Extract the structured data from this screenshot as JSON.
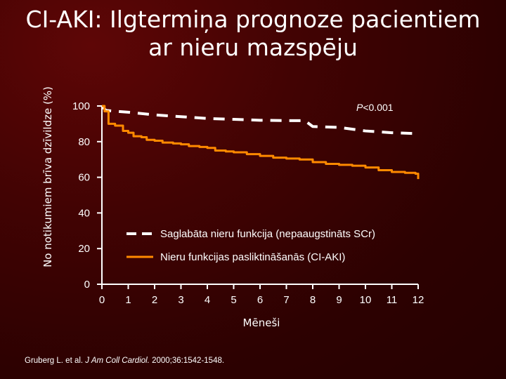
{
  "title": {
    "line1": "CI-AKI: Ilgtermiņa prognoze pacientiem",
    "line2": "ar nieru mazspēju"
  },
  "colors": {
    "background": "#3a0202",
    "series_preserved": "#ffffff",
    "series_aki": "#ff8a00"
  },
  "chart_data": {
    "type": "line",
    "title": "",
    "xlabel": "Mēneši",
    "ylabel": "No notikumiem brīva dzīvildze (%)",
    "xlim": [
      0,
      12
    ],
    "ylim": [
      0,
      100
    ],
    "x_ticks": [
      "0",
      "1",
      "2",
      "3",
      "4",
      "5",
      "6",
      "7",
      "8",
      "9",
      "10",
      "11",
      "12"
    ],
    "y_ticks": [
      "0",
      "20",
      "40",
      "60",
      "80",
      "100"
    ],
    "annotation": "P<0.001",
    "series": [
      {
        "name": "Saglabāta nieru funkcija (nepaaugstināts SCr)",
        "style": "dashed",
        "color": "#ffffff",
        "points": [
          [
            0,
            100
          ],
          [
            0.15,
            97.5
          ],
          [
            1,
            96.5
          ],
          [
            2,
            95
          ],
          [
            3,
            94
          ],
          [
            4,
            93
          ],
          [
            5,
            92.5
          ],
          [
            6,
            92
          ],
          [
            7,
            91.8
          ],
          [
            7.7,
            91.8
          ],
          [
            8,
            88.5
          ],
          [
            9,
            88
          ],
          [
            10,
            86
          ],
          [
            11,
            85
          ],
          [
            12,
            84.5
          ]
        ]
      },
      {
        "name": "Nieru funkcijas pasliktināšanās (CI-AKI)",
        "style": "solid",
        "color": "#ff8a00",
        "points": [
          [
            0,
            100
          ],
          [
            0.1,
            97
          ],
          [
            0.25,
            90
          ],
          [
            0.5,
            89
          ],
          [
            0.8,
            86
          ],
          [
            1,
            85
          ],
          [
            1.2,
            83
          ],
          [
            1.5,
            82.5
          ],
          [
            1.7,
            81
          ],
          [
            2,
            80.5
          ],
          [
            2.3,
            79.5
          ],
          [
            2.7,
            79
          ],
          [
            3,
            78.5
          ],
          [
            3.3,
            77.5
          ],
          [
            3.7,
            77
          ],
          [
            4,
            76.5
          ],
          [
            4.3,
            75
          ],
          [
            4.7,
            74.5
          ],
          [
            5,
            74
          ],
          [
            5.5,
            73
          ],
          [
            6,
            72
          ],
          [
            6.5,
            71
          ],
          [
            7,
            70.5
          ],
          [
            7.5,
            70
          ],
          [
            8,
            68.5
          ],
          [
            8.5,
            67.5
          ],
          [
            9,
            67
          ],
          [
            9.5,
            66.5
          ],
          [
            10,
            65.5
          ],
          [
            10.5,
            64
          ],
          [
            11,
            63
          ],
          [
            11.5,
            62.5
          ],
          [
            11.9,
            62
          ],
          [
            12,
            59
          ]
        ]
      }
    ]
  },
  "citation": {
    "authors": "Gruberg L. et al. ",
    "journal": "J Am Coll Cardiol.",
    "details": " 2000;36:1542-1548."
  }
}
